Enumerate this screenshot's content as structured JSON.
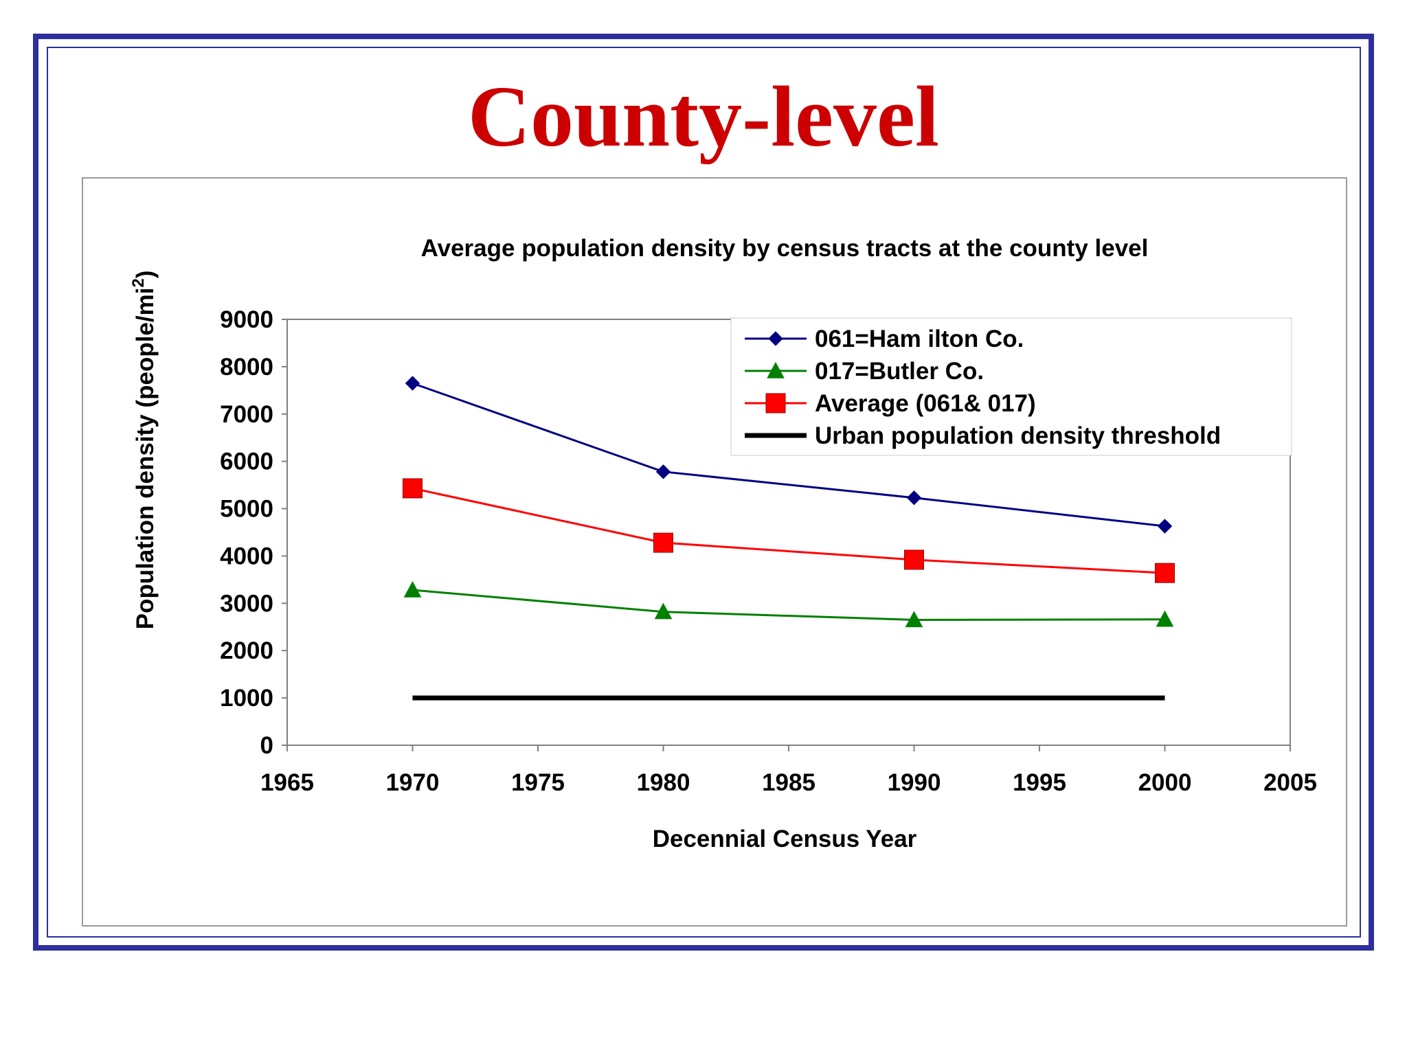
{
  "slide": {
    "title": "County-level"
  },
  "colors": {
    "frame": "#2e2e9e",
    "title": "#cc0000",
    "hamilton": "#000080",
    "butler": "#008000",
    "average": "#ff0000",
    "threshold": "#000000"
  },
  "chart_data": {
    "type": "line",
    "title": "Average population density by census tracts at the county level",
    "xlabel": "Decennial Census Year",
    "ylabel": "Population density (people/mi",
    "ylabel_superscript": "2",
    "ylabel_close": ")",
    "xlim": [
      1965,
      2005
    ],
    "ylim": [
      0,
      9000
    ],
    "xticks": [
      1965,
      1970,
      1975,
      1980,
      1985,
      1990,
      1995,
      2000,
      2005
    ],
    "yticks": [
      0,
      1000,
      2000,
      3000,
      4000,
      5000,
      6000,
      7000,
      8000,
      9000
    ],
    "x": [
      1970,
      1980,
      1990,
      2000
    ],
    "grid": false,
    "legend_position": "top-right",
    "series": [
      {
        "name": "061=Ham ilton Co.",
        "marker": "diamond",
        "color": "#000080",
        "values": [
          7650,
          5780,
          5230,
          4630
        ]
      },
      {
        "name": "017=Butler Co.",
        "marker": "triangle",
        "color": "#008000",
        "values": [
          3280,
          2820,
          2650,
          2660
        ]
      },
      {
        "name": "Average (061& 017)",
        "marker": "square",
        "color": "#ff0000",
        "values": [
          5430,
          4280,
          3920,
          3640
        ]
      },
      {
        "name": "Urban population density threshold",
        "marker": "none",
        "color": "#000000",
        "values": [
          1000,
          1000,
          1000,
          1000
        ]
      }
    ]
  }
}
